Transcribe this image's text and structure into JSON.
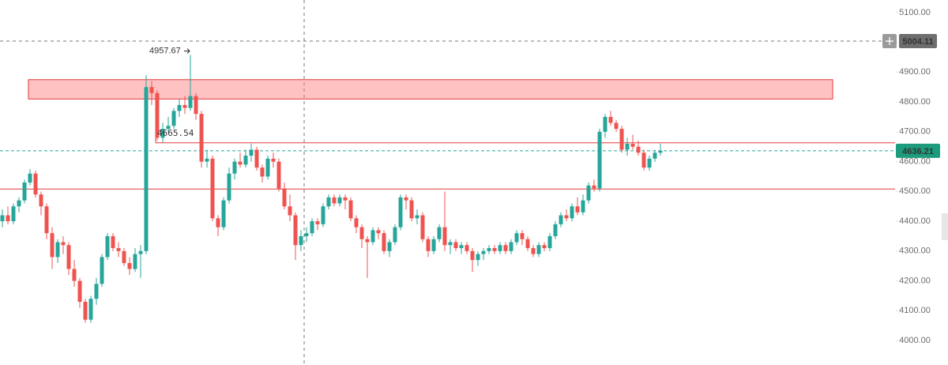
{
  "chart_data": {
    "type": "candlestick",
    "up_color": "#26a69a",
    "down_color": "#ef5350",
    "ylim": [
      3918,
      5142
    ],
    "yticks": [
      {
        "value": 4000,
        "label": "4000.00"
      },
      {
        "value": 4100,
        "label": "4100.00"
      },
      {
        "value": 4200,
        "label": "4200.00"
      },
      {
        "value": 4300,
        "label": "4300.00"
      },
      {
        "value": 4400,
        "label": "4400.00"
      },
      {
        "value": 4500,
        "label": "4500.00"
      },
      {
        "value": 4600,
        "label": "4600.00"
      },
      {
        "value": 4700,
        "label": "4700.00"
      },
      {
        "value": 4800,
        "label": "4800.00"
      },
      {
        "value": 4900,
        "label": "4900.00"
      },
      {
        "value": 5000,
        "label": "5000.00"
      },
      {
        "value": 5100,
        "label": "5100.00"
      }
    ],
    "ohlc": [
      [
        4400,
        4440,
        4380,
        4420
      ],
      [
        4420,
        4450,
        4390,
        4400
      ],
      [
        4400,
        4460,
        4390,
        4450
      ],
      [
        4450,
        4480,
        4430,
        4470
      ],
      [
        4470,
        4540,
        4460,
        4530
      ],
      [
        4530,
        4575,
        4520,
        4560
      ],
      [
        4560,
        4570,
        4480,
        4490
      ],
      [
        4490,
        4500,
        4420,
        4450
      ],
      [
        4450,
        4460,
        4340,
        4360
      ],
      [
        4360,
        4380,
        4240,
        4280
      ],
      [
        4280,
        4340,
        4260,
        4330
      ],
      [
        4330,
        4350,
        4290,
        4320
      ],
      [
        4320,
        4330,
        4220,
        4240
      ],
      [
        4240,
        4270,
        4180,
        4200
      ],
      [
        4200,
        4210,
        4110,
        4130
      ],
      [
        4130,
        4140,
        4060,
        4070
      ],
      [
        4070,
        4150,
        4060,
        4140
      ],
      [
        4140,
        4210,
        4120,
        4190
      ],
      [
        4190,
        4290,
        4180,
        4280
      ],
      [
        4280,
        4360,
        4270,
        4350
      ],
      [
        4350,
        4360,
        4300,
        4310
      ],
      [
        4310,
        4330,
        4280,
        4300
      ],
      [
        4300,
        4310,
        4250,
        4260
      ],
      [
        4260,
        4280,
        4220,
        4240
      ],
      [
        4240,
        4310,
        4230,
        4290
      ],
      [
        4290,
        4320,
        4210,
        4300
      ],
      [
        4300,
        4890,
        4290,
        4850
      ],
      [
        4850,
        4870,
        4790,
        4830
      ],
      [
        4830,
        4840,
        4670,
        4680
      ],
      [
        4680,
        4730,
        4665.54,
        4710
      ],
      [
        4710,
        4750,
        4700,
        4720
      ],
      [
        4720,
        4780,
        4710,
        4770
      ],
      [
        4770,
        4810,
        4750,
        4790
      ],
      [
        4790,
        4820,
        4760,
        4780
      ],
      [
        4780,
        4957.67,
        4770,
        4820
      ],
      [
        4820,
        4830,
        4740,
        4760
      ],
      [
        4760,
        4770,
        4580,
        4600
      ],
      [
        4600,
        4640,
        4580,
        4610
      ],
      [
        4610,
        4620,
        4400,
        4410
      ],
      [
        4410,
        4420,
        4350,
        4380
      ],
      [
        4380,
        4480,
        4370,
        4470
      ],
      [
        4470,
        4580,
        4460,
        4560
      ],
      [
        4560,
        4610,
        4540,
        4600
      ],
      [
        4600,
        4630,
        4580,
        4590
      ],
      [
        4590,
        4640,
        4580,
        4620
      ],
      [
        4620,
        4660,
        4600,
        4640
      ],
      [
        4640,
        4650,
        4570,
        4580
      ],
      [
        4580,
        4590,
        4530,
        4550
      ],
      [
        4550,
        4620,
        4540,
        4610
      ],
      [
        4610,
        4630,
        4580,
        4600
      ],
      [
        4600,
        4610,
        4500,
        4510
      ],
      [
        4510,
        4530,
        4440,
        4450
      ],
      [
        4450,
        4490,
        4400,
        4420
      ],
      [
        4420,
        4430,
        4270,
        4320
      ],
      [
        4320,
        4370,
        4300,
        4350
      ],
      [
        4350,
        4380,
        4330,
        4360
      ],
      [
        4360,
        4410,
        4350,
        4400
      ],
      [
        4400,
        4410,
        4370,
        4390
      ],
      [
        4390,
        4460,
        4380,
        4450
      ],
      [
        4450,
        4490,
        4440,
        4480
      ],
      [
        4480,
        4490,
        4450,
        4460
      ],
      [
        4460,
        4490,
        4450,
        4480
      ],
      [
        4480,
        4490,
        4440,
        4470
      ],
      [
        4470,
        4480,
        4400,
        4410
      ],
      [
        4410,
        4420,
        4360,
        4380
      ],
      [
        4380,
        4390,
        4310,
        4340
      ],
      [
        4340,
        4350,
        4210,
        4330
      ],
      [
        4330,
        4380,
        4320,
        4370
      ],
      [
        4370,
        4380,
        4340,
        4360
      ],
      [
        4360,
        4370,
        4290,
        4300
      ],
      [
        4300,
        4340,
        4280,
        4330
      ],
      [
        4330,
        4390,
        4320,
        4380
      ],
      [
        4380,
        4490,
        4370,
        4480
      ],
      [
        4480,
        4490,
        4440,
        4470
      ],
      [
        4470,
        4480,
        4400,
        4410
      ],
      [
        4410,
        4440,
        4390,
        4420
      ],
      [
        4420,
        4430,
        4330,
        4340
      ],
      [
        4340,
        4350,
        4280,
        4300
      ],
      [
        4300,
        4350,
        4290,
        4340
      ],
      [
        4340,
        4390,
        4330,
        4380
      ],
      [
        4380,
        4500,
        4300,
        4320
      ],
      [
        4320,
        4340,
        4290,
        4330
      ],
      [
        4330,
        4340,
        4300,
        4310
      ],
      [
        4310,
        4330,
        4290,
        4320
      ],
      [
        4320,
        4330,
        4290,
        4300
      ],
      [
        4300,
        4310,
        4230,
        4270
      ],
      [
        4270,
        4300,
        4250,
        4290
      ],
      [
        4290,
        4310,
        4270,
        4300
      ],
      [
        4300,
        4320,
        4290,
        4310
      ],
      [
        4310,
        4320,
        4290,
        4300
      ],
      [
        4300,
        4330,
        4290,
        4320
      ],
      [
        4320,
        4330,
        4290,
        4300
      ],
      [
        4300,
        4340,
        4290,
        4330
      ],
      [
        4330,
        4370,
        4320,
        4360
      ],
      [
        4360,
        4370,
        4320,
        4340
      ],
      [
        4340,
        4350,
        4300,
        4310
      ],
      [
        4310,
        4320,
        4280,
        4290
      ],
      [
        4290,
        4330,
        4280,
        4320
      ],
      [
        4320,
        4330,
        4300,
        4310
      ],
      [
        4310,
        4360,
        4300,
        4350
      ],
      [
        4350,
        4400,
        4340,
        4390
      ],
      [
        4390,
        4430,
        4380,
        4420
      ],
      [
        4420,
        4440,
        4400,
        4410
      ],
      [
        4410,
        4460,
        4400,
        4450
      ],
      [
        4450,
        4480,
        4420,
        4430
      ],
      [
        4430,
        4490,
        4420,
        4470
      ],
      [
        4470,
        4530,
        4460,
        4520
      ],
      [
        4520,
        4540,
        4500,
        4510
      ],
      [
        4510,
        4710,
        4500,
        4700
      ],
      [
        4700,
        4760,
        4680,
        4750
      ],
      [
        4750,
        4770,
        4720,
        4730
      ],
      [
        4730,
        4740,
        4700,
        4710
      ],
      [
        4710,
        4720,
        4630,
        4640
      ],
      [
        4640,
        4680,
        4620,
        4660
      ],
      [
        4660,
        4690,
        4640,
        4650
      ],
      [
        4650,
        4670,
        4620,
        4630
      ],
      [
        4630,
        4640,
        4570,
        4580
      ],
      [
        4580,
        4620,
        4570,
        4610
      ],
      [
        4610,
        4640,
        4600,
        4630
      ],
      [
        4630,
        4660,
        4620,
        4636.21
      ]
    ],
    "resistance_zone": [
      4810,
      4875
    ],
    "upper_level": 4663,
    "lower_level": 4508,
    "high_marker": 4957.67,
    "low_marker": 4665.54,
    "crosshair_price": 5004.11,
    "last_price": 4636.21
  }
}
